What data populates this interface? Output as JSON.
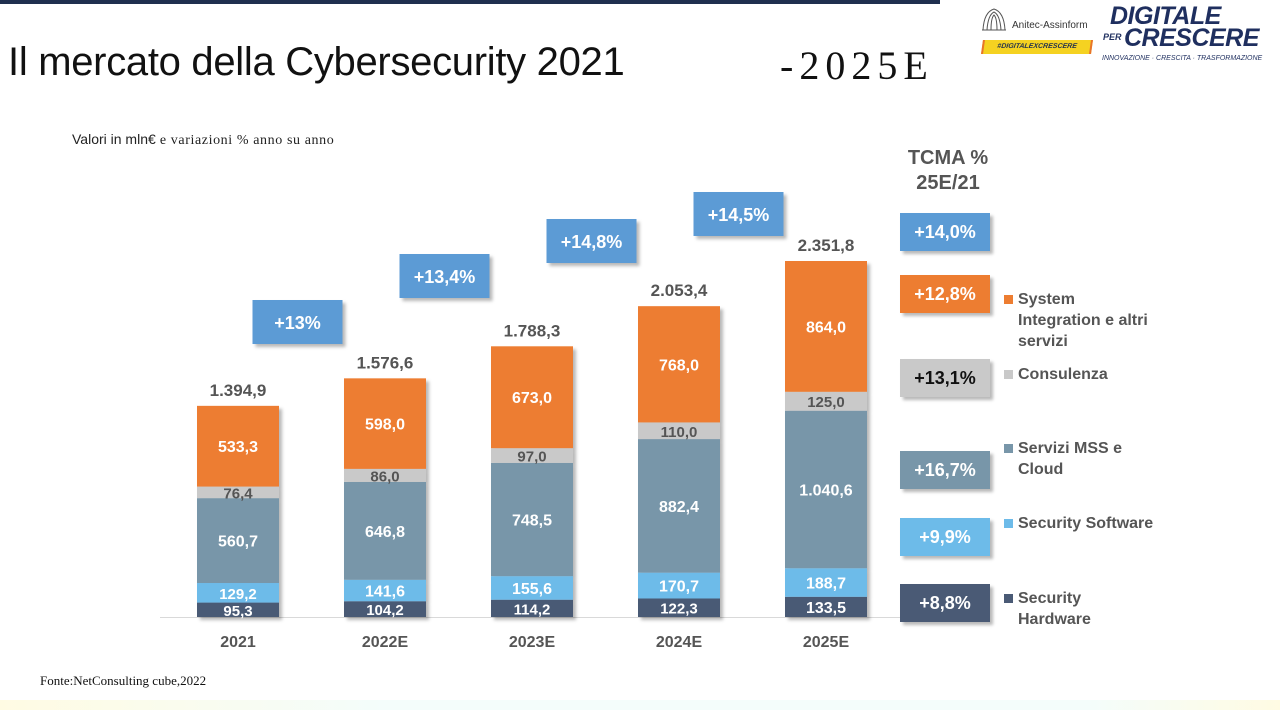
{
  "slide": {
    "title_main": "Il mercato della Cybersecurity 2021",
    "title_suffix": "-2025E",
    "subtitle_part1": "Valori in mln€",
    "subtitle_part2": " e variazioni % anno su anno",
    "source": "Fonte:NetConsulting cube,2022",
    "logos": {
      "anitec_name": "Anitec-Assinform",
      "anitec_hashtag": "#DIGITALEXCRESCERE",
      "digitale_line1": "DIGITALE",
      "digitale_per": "PER",
      "digitale_line2": "CRESCERE",
      "digitale_tagline": "INNOVAZIONE · CRESCITA · TRASFORMAZIONE"
    }
  },
  "colors": {
    "system_integration": "#ed7d31",
    "consulenza": "#c9c9c9",
    "servizi_mss": "#7896a9",
    "security_software": "#6dbbe9",
    "security_hardware": "#4a5a75",
    "growth_box": "#5b9bd5",
    "label_dark": "#555555",
    "axis": "#d9d9d9"
  },
  "chart_data": {
    "type": "bar",
    "stacked": true,
    "title": "Il mercato della Cybersecurity 2021-2025E",
    "subtitle": "Valori in mln€ e variazioni % anno su anno",
    "xlabel": "",
    "ylabel": "",
    "ylim": [
      0,
      2400
    ],
    "grid": false,
    "legend_position": "right",
    "categories": [
      "2021",
      "2022E",
      "2023E",
      "2024E",
      "2025E"
    ],
    "series": [
      {
        "name": "Security Hardware",
        "key": "security_hardware",
        "values": [
          95.3,
          104.2,
          114.2,
          122.3,
          133.5
        ],
        "labels": [
          "95,3",
          "104,2",
          "114,2",
          "122,3",
          "133,5"
        ],
        "label_color": "#ffffff",
        "cagr": "+8,8%"
      },
      {
        "name": "Security Software",
        "key": "security_software",
        "values": [
          129.2,
          141.6,
          155.6,
          170.7,
          188.7
        ],
        "labels": [
          "129,2",
          "141,6",
          "155,6",
          "170,7",
          "188,7"
        ],
        "label_color": "#ffffff",
        "cagr": "+9,9%"
      },
      {
        "name": "Servizi MSS e Cloud",
        "key": "servizi_mss",
        "values": [
          560.7,
          646.8,
          748.5,
          882.4,
          1040.6
        ],
        "labels": [
          "560,7",
          "646,8",
          "748,5",
          "882,4",
          "1.040,6"
        ],
        "label_color": "#ffffff",
        "cagr": "+16,7%"
      },
      {
        "name": "Consulenza",
        "key": "consulenza",
        "values": [
          76.4,
          86.0,
          97.0,
          110.0,
          125.0
        ],
        "labels": [
          "76,4",
          "86,0",
          "97,0",
          "110,0",
          "125,0"
        ],
        "label_color": "#555555",
        "cagr": "+13,1%"
      },
      {
        "name": "System Integration e altri servizi",
        "key": "system_integration",
        "values": [
          533.3,
          598.0,
          673.0,
          768.0,
          864.0
        ],
        "labels": [
          "533,3",
          "598,0",
          "673,0",
          "768,0",
          "864,0"
        ],
        "label_color": "#ffffff",
        "cagr": "+12,8%"
      }
    ],
    "totals": [
      1394.9,
      1576.6,
      1788.3,
      2053.4,
      2351.8
    ],
    "total_labels": [
      "1.394,9",
      "1.576,6",
      "1.788,3",
      "2.053,4",
      "2.351,8"
    ],
    "yoy_growth": [
      "+13%",
      "+13,4%",
      "+14,8%",
      "+14,5%"
    ],
    "yoy_growth_between": [
      [
        "2021",
        "2022E"
      ],
      [
        "2022E",
        "2023E"
      ],
      [
        "2023E",
        "2024E"
      ],
      [
        "2024E",
        "2025E"
      ]
    ],
    "cagr_title_line1": "TCMA %",
    "cagr_title_line2": "25E/21",
    "cagr_total": "+14,0%"
  },
  "legend": [
    {
      "label_lines": [
        "System",
        "Integration e altri",
        "servizi"
      ],
      "key": "system_integration",
      "cagr": "+12,8%",
      "cagr_text_color": "#ffffff"
    },
    {
      "label_lines": [
        "Consulenza"
      ],
      "key": "consulenza",
      "cagr": "+13,1%",
      "cagr_text_color": "#111111"
    },
    {
      "label_lines": [
        "Servizi MSS e",
        "Cloud"
      ],
      "key": "servizi_mss",
      "cagr": "+16,7%",
      "cagr_text_color": "#ffffff"
    },
    {
      "label_lines": [
        "Security Software"
      ],
      "key": "security_software",
      "cagr": "+9,9%",
      "cagr_text_color": "#ffffff"
    },
    {
      "label_lines": [
        "Security",
        "Hardware"
      ],
      "key": "security_hardware",
      "cagr": "+8,8%",
      "cagr_text_color": "#ffffff"
    }
  ]
}
